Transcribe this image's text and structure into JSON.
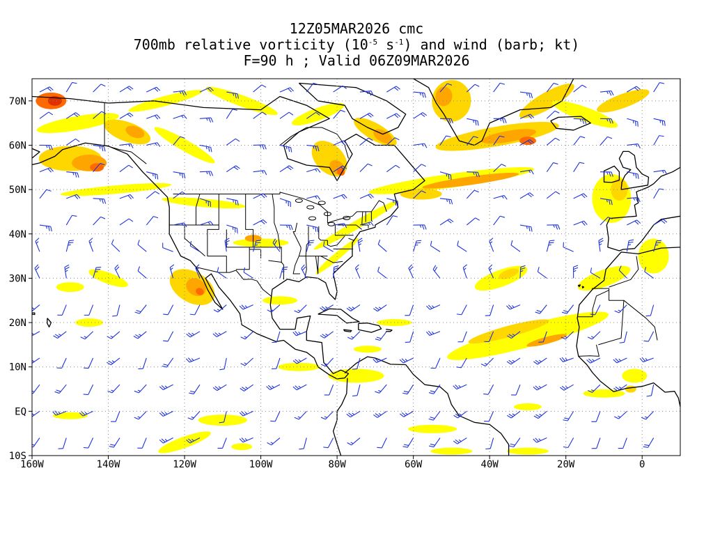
{
  "title": {
    "line1": "12Z05MAR2026 cmc",
    "line2_pre": "700mb relative vorticity (10",
    "line2_sup1": "-5",
    "line2_mid": " s",
    "line2_sup2": "-1",
    "line2_post": ") and wind (barb; kt)",
    "line3": "F=90 h ; Valid 06Z09MAR2026"
  },
  "axes": {
    "lon_range": [
      -160,
      10
    ],
    "lat_range": [
      -10,
      75
    ],
    "lon_ticks": [
      {
        "value": -160,
        "label": "160W"
      },
      {
        "value": -140,
        "label": "140W"
      },
      {
        "value": -120,
        "label": "120W"
      },
      {
        "value": -100,
        "label": "100W"
      },
      {
        "value": -80,
        "label": "80W"
      },
      {
        "value": -60,
        "label": "60W"
      },
      {
        "value": -40,
        "label": "40W"
      },
      {
        "value": -20,
        "label": "20W"
      },
      {
        "value": 0,
        "label": "0"
      }
    ],
    "lat_ticks": [
      {
        "value": 70,
        "label": "70N"
      },
      {
        "value": 60,
        "label": "60N"
      },
      {
        "value": 50,
        "label": "50N"
      },
      {
        "value": 40,
        "label": "40N"
      },
      {
        "value": 30,
        "label": "30N"
      },
      {
        "value": 20,
        "label": "20N"
      },
      {
        "value": 10,
        "label": "10N"
      },
      {
        "value": 0,
        "label": "EQ"
      },
      {
        "value": -10,
        "label": "10S"
      }
    ],
    "grid": true
  },
  "colors": {
    "vort_weak": "#ffff00",
    "vort_low": "#ffd700",
    "vort_mid": "#ffa500",
    "vort_high": "#ff6a00",
    "vort_max": "#e03000",
    "barb": "#1e32dc",
    "coast": "#000000",
    "grid": "#888888"
  }
}
